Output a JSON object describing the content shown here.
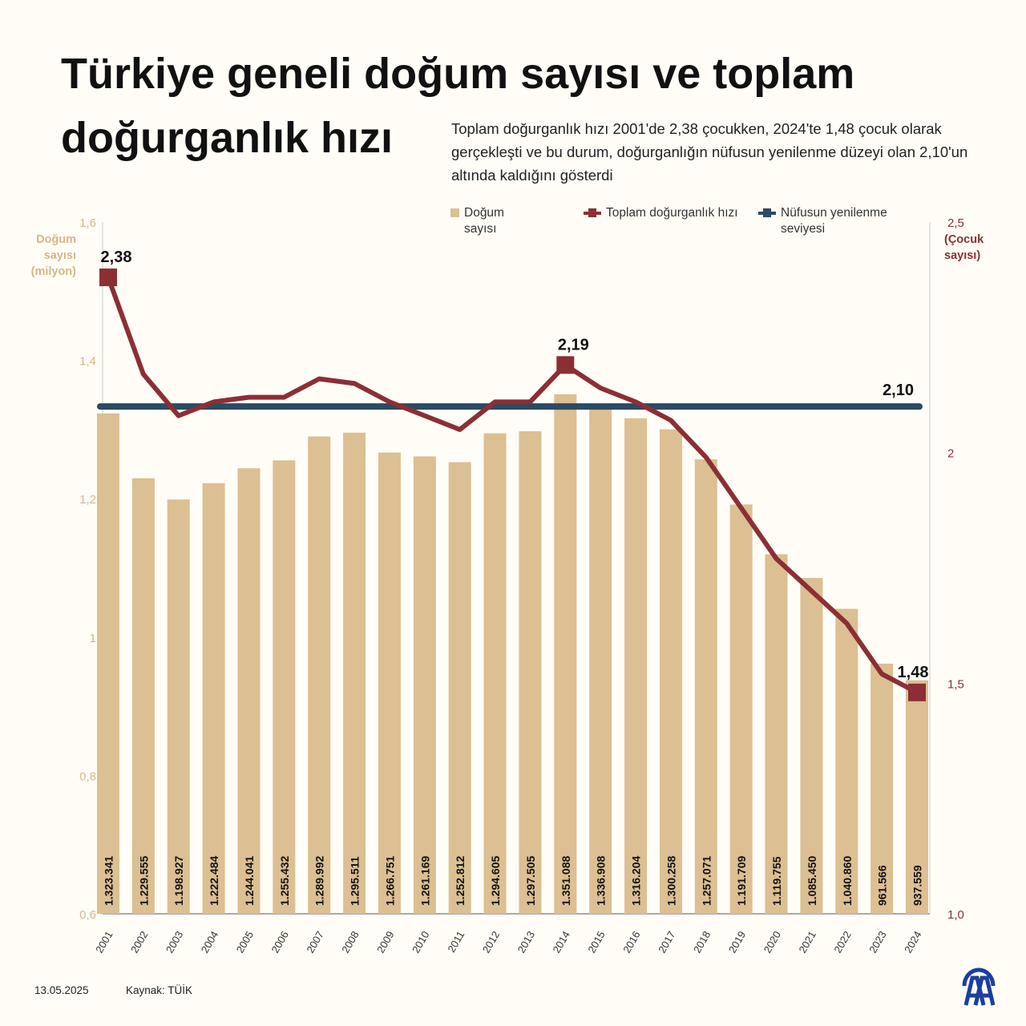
{
  "header": {
    "title": "Türkiye geneli doğum sayısı ve toplam doğurganlık hızı",
    "subtitle": "Toplam doğurganlık hızı 2001'de 2,38 çocukken, 2024'te 1,48 çocuk olarak gerçekleşti ve bu durum, doğurganlığın nüfusun yenilenme düzeyi olan 2,10'un altında kaldığını gösterdi"
  },
  "legend": [
    {
      "label": "Doğum sayısı",
      "color": "#dcbf92"
    },
    {
      "label": "Toplam doğurganlık hızı",
      "color": "#8b2f35"
    },
    {
      "label": "Nüfusun yenilenme seviyesi",
      "color": "#2b4a63"
    }
  ],
  "footer": {
    "date": "13.05.2025",
    "source": "Kaynak: TÜİK",
    "logo": "AA"
  },
  "chart_data": {
    "type": "bar+line",
    "categories": [
      "2001",
      "2002",
      "2003",
      "2004",
      "2005",
      "2006",
      "2007",
      "2008",
      "2009",
      "2010",
      "2011",
      "2012",
      "2013",
      "2014",
      "2015",
      "2016",
      "2017",
      "2018",
      "2019",
      "2020",
      "2021",
      "2022",
      "2023",
      "2024"
    ],
    "left_axis": {
      "label": "Doğum sayısı (milyon)",
      "ylim": [
        0.6,
        1.6
      ],
      "ticks": [
        "0,6",
        "0,8",
        "1",
        "1,2",
        "1,4",
        "1,6"
      ],
      "color": "#dcbf92"
    },
    "right_axis": {
      "label": "(Çocuk sayısı)",
      "ylim": [
        1.0,
        2.5
      ],
      "ticks": [
        "1,0",
        "1,5",
        "2",
        "2,5"
      ],
      "color": "#8b2f35"
    },
    "series": [
      {
        "name": "Doğum sayısı",
        "type": "bar",
        "axis": "left",
        "values": [
          1323341,
          1229555,
          1198927,
          1222484,
          1244041,
          1255432,
          1289992,
          1295511,
          1266751,
          1261169,
          1252812,
          1294605,
          1297505,
          1351088,
          1336908,
          1316204,
          1300258,
          1257071,
          1191709,
          1119755,
          1085450,
          1040860,
          961566,
          937559
        ],
        "labels": [
          "1.323.341",
          "1.229.555",
          "1.198.927",
          "1.222.484",
          "1.244.041",
          "1.255.432",
          "1.289.992",
          "1.295.511",
          "1.266.751",
          "1.261.169",
          "1.252.812",
          "1.294.605",
          "1.297.505",
          "1.351.088",
          "1.336.908",
          "1.316.204",
          "1.300.258",
          "1.257.071",
          "1.191.709",
          "1.119.755",
          "1.085.450",
          "1.040.860",
          "961.566",
          "937.559"
        ]
      },
      {
        "name": "Toplam doğurganlık hızı",
        "type": "line",
        "axis": "right",
        "values": [
          2.38,
          2.17,
          2.08,
          2.11,
          2.12,
          2.12,
          2.16,
          2.15,
          2.11,
          2.08,
          2.05,
          2.11,
          2.11,
          2.19,
          2.14,
          2.11,
          2.07,
          1.99,
          1.88,
          1.77,
          1.7,
          1.63,
          1.52,
          1.48
        ],
        "annotations": [
          {
            "index": 0,
            "text": "2,38"
          },
          {
            "index": 13,
            "text": "2,19"
          },
          {
            "index": 23,
            "text": "1,48"
          }
        ]
      },
      {
        "name": "Nüfusun yenilenme seviyesi",
        "type": "line",
        "axis": "right",
        "value": 2.1,
        "label": "2,10"
      }
    ],
    "grid": false,
    "legend_position": "top-right"
  }
}
